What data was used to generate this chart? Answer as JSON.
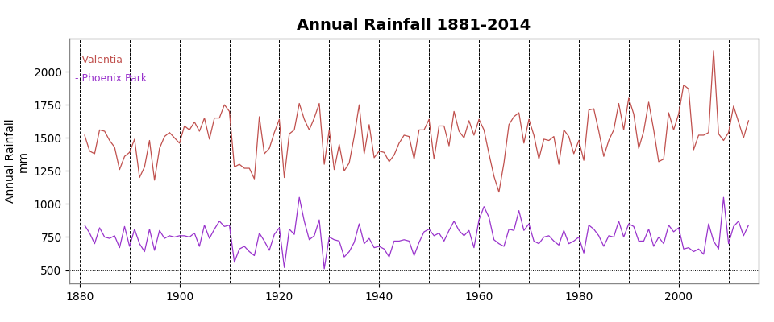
{
  "title": "Annual Rainfall 1881-2014",
  "ylabel": "Annual Rainfall\nmm",
  "years": [
    1881,
    1882,
    1883,
    1884,
    1885,
    1886,
    1887,
    1888,
    1889,
    1890,
    1891,
    1892,
    1893,
    1894,
    1895,
    1896,
    1897,
    1898,
    1899,
    1900,
    1901,
    1902,
    1903,
    1904,
    1905,
    1906,
    1907,
    1908,
    1909,
    1910,
    1911,
    1912,
    1913,
    1914,
    1915,
    1916,
    1917,
    1918,
    1919,
    1920,
    1921,
    1922,
    1923,
    1924,
    1925,
    1926,
    1927,
    1928,
    1929,
    1930,
    1931,
    1932,
    1933,
    1934,
    1935,
    1936,
    1937,
    1938,
    1939,
    1940,
    1941,
    1942,
    1943,
    1944,
    1945,
    1946,
    1947,
    1948,
    1949,
    1950,
    1951,
    1952,
    1953,
    1954,
    1955,
    1956,
    1957,
    1958,
    1959,
    1960,
    1961,
    1962,
    1963,
    1964,
    1965,
    1966,
    1967,
    1968,
    1969,
    1970,
    1971,
    1972,
    1973,
    1974,
    1975,
    1976,
    1977,
    1978,
    1979,
    1980,
    1981,
    1982,
    1983,
    1984,
    1985,
    1986,
    1987,
    1988,
    1989,
    1990,
    1991,
    1992,
    1993,
    1994,
    1995,
    1996,
    1997,
    1998,
    1999,
    2000,
    2001,
    2002,
    2003,
    2004,
    2005,
    2006,
    2007,
    2008,
    2009,
    2010,
    2011,
    2012,
    2013,
    2014
  ],
  "valentia": [
    1520,
    1400,
    1380,
    1560,
    1550,
    1480,
    1430,
    1260,
    1360,
    1390,
    1490,
    1200,
    1280,
    1480,
    1180,
    1420,
    1510,
    1540,
    1500,
    1460,
    1590,
    1560,
    1620,
    1550,
    1650,
    1490,
    1650,
    1650,
    1750,
    1700,
    1280,
    1300,
    1270,
    1270,
    1190,
    1660,
    1380,
    1420,
    1540,
    1640,
    1200,
    1530,
    1560,
    1760,
    1640,
    1560,
    1650,
    1760,
    1300,
    1560,
    1260,
    1450,
    1250,
    1310,
    1510,
    1750,
    1380,
    1600,
    1350,
    1400,
    1390,
    1320,
    1370,
    1460,
    1520,
    1510,
    1340,
    1560,
    1560,
    1640,
    1340,
    1590,
    1590,
    1440,
    1700,
    1550,
    1500,
    1630,
    1520,
    1640,
    1560,
    1380,
    1210,
    1090,
    1310,
    1600,
    1660,
    1690,
    1460,
    1640,
    1520,
    1340,
    1490,
    1480,
    1510,
    1300,
    1560,
    1510,
    1380,
    1480,
    1330,
    1710,
    1720,
    1550,
    1360,
    1480,
    1560,
    1760,
    1560,
    1800,
    1680,
    1420,
    1550,
    1770,
    1560,
    1320,
    1340,
    1690,
    1560,
    1680,
    1900,
    1870,
    1410,
    1520,
    1520,
    1540,
    2160,
    1530,
    1480,
    1540,
    1740,
    1620,
    1500,
    1630
  ],
  "phoenix": [
    840,
    780,
    700,
    820,
    750,
    740,
    760,
    670,
    830,
    680,
    810,
    700,
    640,
    810,
    650,
    800,
    740,
    760,
    750,
    760,
    760,
    750,
    780,
    680,
    840,
    740,
    810,
    870,
    830,
    840,
    560,
    660,
    680,
    640,
    610,
    780,
    720,
    650,
    770,
    820,
    520,
    810,
    770,
    1050,
    870,
    730,
    760,
    880,
    510,
    750,
    730,
    720,
    600,
    640,
    710,
    850,
    700,
    740,
    670,
    680,
    660,
    600,
    720,
    720,
    730,
    720,
    610,
    710,
    790,
    810,
    760,
    780,
    720,
    800,
    870,
    800,
    760,
    800,
    670,
    880,
    980,
    900,
    730,
    700,
    680,
    810,
    800,
    950,
    800,
    850,
    720,
    700,
    750,
    760,
    720,
    690,
    800,
    700,
    720,
    750,
    630,
    840,
    810,
    760,
    680,
    760,
    750,
    870,
    750,
    850,
    830,
    720,
    720,
    810,
    680,
    750,
    700,
    840,
    790,
    820,
    660,
    670,
    640,
    660,
    620,
    850,
    720,
    660,
    1050,
    700,
    830,
    870,
    760,
    840
  ],
  "valentia_color": "#c0504d",
  "phoenix_color": "#9933cc",
  "background_color": "#ffffff",
  "plot_bg_color": "#ffffff",
  "xlim": [
    1878,
    2016
  ],
  "ylim": [
    400,
    2250
  ],
  "yticks": [
    500,
    750,
    1000,
    1250,
    1500,
    1750,
    2000
  ],
  "xticks": [
    1880,
    1900,
    1920,
    1940,
    1960,
    1980,
    2000
  ],
  "title_fontsize": 14,
  "label_fontsize": 10,
  "tick_fontsize": 10,
  "legend_valentia": "- Valentia",
  "legend_phoenix": "- Phoenix Park"
}
